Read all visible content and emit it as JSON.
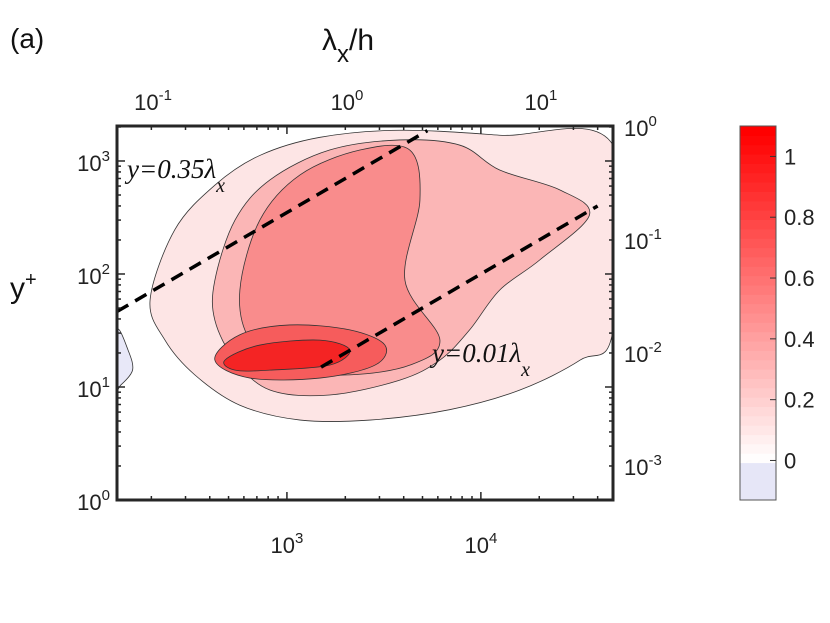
{
  "chart_data": {
    "type": "contour",
    "panel_label": "(a)",
    "xlabel_bottom": "",
    "xlabel_top": {
      "base": "λ",
      "sub": "x",
      "rest": "/h"
    },
    "ylabel_left": {
      "base": "y",
      "sup": "+"
    },
    "ylabel_right": "",
    "x_scale": "log",
    "y_scale": "log",
    "xlim": [
      133,
      48000
    ],
    "ylim": [
      1,
      2040
    ],
    "x_ticks_bottom": [
      {
        "value": 1000,
        "base": "10",
        "exp": "3"
      },
      {
        "value": 10000,
        "base": "10",
        "exp": "4"
      }
    ],
    "y_ticks_left": [
      {
        "value": 1,
        "base": "10",
        "exp": "0"
      },
      {
        "value": 10,
        "base": "10",
        "exp": "1"
      },
      {
        "value": 100,
        "base": "10",
        "exp": "2"
      },
      {
        "value": 1000,
        "base": "10",
        "exp": "3"
      }
    ],
    "x_ticks_top": [
      {
        "value": 0.1,
        "base": "10",
        "exp": "-1"
      },
      {
        "value": 1,
        "base": "10",
        "exp": "0"
      },
      {
        "value": 10,
        "base": "10",
        "exp": "1"
      }
    ],
    "y_ticks_right": [
      {
        "value": 0.001,
        "base": "10",
        "exp": "-3"
      },
      {
        "value": 0.01,
        "base": "10",
        "exp": "-2"
      },
      {
        "value": 0.1,
        "base": "10",
        "exp": "-1"
      },
      {
        "value": 1,
        "base": "10",
        "exp": "0"
      }
    ],
    "colorbar": {
      "range": [
        -0.13,
        1.1
      ],
      "ticks": [
        "0",
        "0.2",
        "0.4",
        "0.6",
        "0.8",
        "1"
      ],
      "tick_values": [
        0,
        0.2,
        0.4,
        0.6,
        0.8,
        1
      ],
      "negative_color": "#e6e6f7",
      "zero_color": "#ffffff",
      "max_color": "#ff0000"
    },
    "contours": [
      {
        "level": -0.05,
        "color": "#e8e8f8",
        "points": [
          [
            133,
            32
          ],
          [
            152,
            21
          ],
          [
            160,
            14.1
          ],
          [
            139,
            10.4
          ],
          [
            133,
            10.4
          ]
        ]
      },
      {
        "level": 0.1,
        "color": "#fde5e5",
        "points": [
          [
            197,
            59
          ],
          [
            264,
            246
          ],
          [
            425,
            611
          ],
          [
            725,
            1120
          ],
          [
            1480,
            1620
          ],
          [
            3820,
            1870
          ],
          [
            12500,
            1690
          ],
          [
            48000,
            1380
          ],
          [
            48000,
            32
          ],
          [
            32500,
            17.3
          ],
          [
            15900,
            9.4
          ],
          [
            6900,
            6.3
          ],
          [
            2680,
            5.1
          ],
          [
            1170,
            5.1
          ],
          [
            572,
            6.9
          ],
          [
            335,
            12.8
          ],
          [
            235,
            26
          ]
        ]
      },
      {
        "level": 0.3,
        "color": "#fbb6b6",
        "points": [
          [
            425,
            88
          ],
          [
            540,
            300
          ],
          [
            817,
            680
          ],
          [
            1660,
            1250
          ],
          [
            3820,
            1535
          ],
          [
            7800,
            1380
          ],
          [
            12500,
            832
          ],
          [
            25500,
            555
          ],
          [
            36300,
            333
          ],
          [
            20100,
            133
          ],
          [
            12500,
            72
          ],
          [
            8750,
            32
          ],
          [
            6150,
            17.3
          ],
          [
            3820,
            11.5
          ],
          [
            1660,
            8.5
          ],
          [
            817,
            9.4
          ],
          [
            540,
            17.3
          ],
          [
            425,
            39
          ]
        ]
      },
      {
        "level": 0.45,
        "color": "#f98c8c",
        "points": [
          [
            572,
            72
          ],
          [
            725,
            300
          ],
          [
            1170,
            755
          ],
          [
            2380,
            1250
          ],
          [
            4300,
            1250
          ],
          [
            4850,
            450
          ],
          [
            4060,
            88
          ],
          [
            6150,
            26
          ],
          [
            4300,
            15.6
          ],
          [
            2110,
            12.8
          ],
          [
            1035,
            14.1
          ],
          [
            645,
            26
          ]
        ]
      },
      {
        "level": 0.65,
        "color": "#f65c5c",
        "points": [
          [
            425,
            17.3
          ],
          [
            572,
            29
          ],
          [
            1035,
            35.4
          ],
          [
            2110,
            32
          ],
          [
            3200,
            23.5
          ],
          [
            2840,
            15.6
          ],
          [
            1480,
            12.0
          ],
          [
            645,
            12.0
          ]
        ]
      },
      {
        "level": 0.85,
        "color": "#f42424",
        "points": [
          [
            479,
            17.3
          ],
          [
            725,
            23.5
          ],
          [
            1480,
            26
          ],
          [
            2110,
            21.3
          ],
          [
            1660,
            15.6
          ],
          [
            817,
            14.1
          ],
          [
            540,
            14.1
          ]
        ]
      }
    ],
    "reference_lines": [
      {
        "label": {
          "text": "y=0.35λ",
          "sub": "x"
        },
        "coef": 0.35,
        "x_range": [
          133,
          5300
        ],
        "style": "dashed"
      },
      {
        "label": {
          "text": "y=0.01λ",
          "sub": "x"
        },
        "coef": 0.01,
        "x_range": [
          1500,
          40000
        ],
        "style": "dashed"
      }
    ]
  }
}
